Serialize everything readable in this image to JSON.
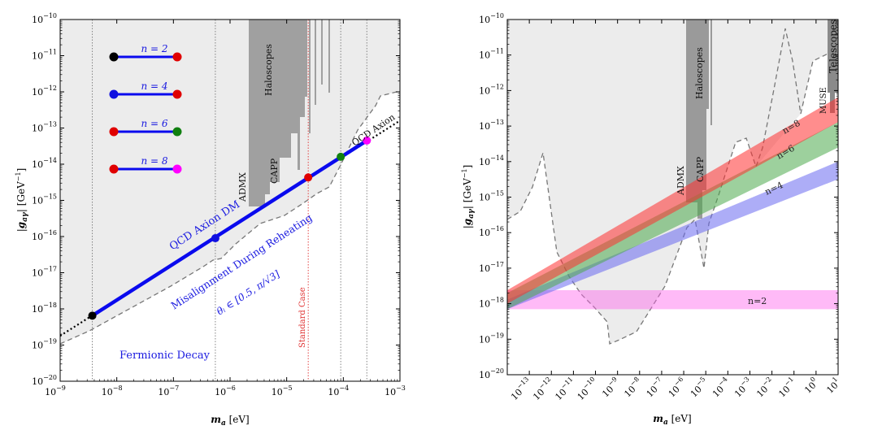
{
  "chart_data": [
    {
      "type": "line",
      "xscale": "log",
      "yscale": "log",
      "xlim": [
        1e-09,
        0.001
      ],
      "ylim": [
        1e-20,
        1e-10
      ],
      "xlabel": "m_a [eV]",
      "ylabel": "|g_aγ| [GeV⁻¹]",
      "x_ticks": [
        {
          "exp": -9,
          "label": "10",
          "sup": "−9"
        },
        {
          "exp": -8,
          "label": "10",
          "sup": "−8"
        },
        {
          "exp": -7,
          "label": "10",
          "sup": "−7"
        },
        {
          "exp": -6,
          "label": "10",
          "sup": "−6"
        },
        {
          "exp": -5,
          "label": "10",
          "sup": "−5"
        },
        {
          "exp": -4,
          "label": "10",
          "sup": "−4"
        },
        {
          "exp": -3,
          "label": "10",
          "sup": "−3"
        }
      ],
      "y_ticks": [
        {
          "exp": -20,
          "label": "10",
          "sup": "−20"
        },
        {
          "exp": -19,
          "label": "10",
          "sup": "−19"
        },
        {
          "exp": -18,
          "label": "10",
          "sup": "−18"
        },
        {
          "exp": -17,
          "label": "10",
          "sup": "−17"
        },
        {
          "exp": -16,
          "label": "10",
          "sup": "−16"
        },
        {
          "exp": -15,
          "label": "10",
          "sup": "−15"
        },
        {
          "exp": -14,
          "label": "10",
          "sup": "−14"
        },
        {
          "exp": -13,
          "label": "10",
          "sup": "−13"
        },
        {
          "exp": -12,
          "label": "10",
          "sup": "−12"
        },
        {
          "exp": -11,
          "label": "10",
          "sup": "−11"
        },
        {
          "exp": -10,
          "label": "10",
          "sup": "−10"
        }
      ],
      "qcd_axion_line": {
        "x": [
          1e-09,
          0.001
        ],
        "y": [
          1.8e-19,
          1.6e-13
        ]
      },
      "dm_segment": {
        "x": [
          3.7e-09,
          0.00026
        ],
        "y": [
          6.5e-19,
          4.5e-14
        ]
      },
      "points": [
        {
          "x": 3.7e-09,
          "y": 6.5e-19,
          "color": "#000000"
        },
        {
          "x": 5.5e-07,
          "y": 9e-17,
          "color": "#1010e0"
        },
        {
          "x": 2.4e-05,
          "y": 4.3e-15,
          "color": "#e00000"
        },
        {
          "x": 9e-05,
          "y": 1.6e-14,
          "color": "#108010"
        },
        {
          "x": 0.00026,
          "y": 4.5e-14,
          "color": "#ff00ff"
        }
      ],
      "vlines": [
        {
          "x": 3.7e-09,
          "color": "#777777"
        },
        {
          "x": 5.5e-07,
          "color": "#777777"
        },
        {
          "x": 2.4e-05,
          "color": "#e03030"
        },
        {
          "x": 9e-05,
          "color": "#777777"
        },
        {
          "x": 0.00026,
          "color": "#777777"
        }
      ],
      "legend_items": [
        {
          "label": "n = 2",
          "left_color": "#000000",
          "right_color": "#e00000"
        },
        {
          "label": "n = 4",
          "left_color": "#1010e0",
          "right_color": "#e00000"
        },
        {
          "label": "n = 6",
          "left_color": "#e00000",
          "right_color": "#108010"
        },
        {
          "label": "n = 8",
          "left_color": "#e00000",
          "right_color": "#ff00ff"
        }
      ],
      "annotations": {
        "haloscopes": "Haloscopes",
        "admx": "ADMX",
        "capp": "CAPP",
        "qcd_axion": "QCD Axion",
        "qcd_axion_dm": "QCD Axion DM",
        "misalignment": "Misalignment During Reheating",
        "theta": "θᵢ ∈ [0.5, π/√3]",
        "standard_case": "Standard Case",
        "fermionic_decay": "Fermionic Decay"
      },
      "colors": {
        "excluded": "#ececec",
        "haloscope": "#a0a0a0",
        "dm_line": "#0a0aee"
      }
    },
    {
      "type": "area",
      "xscale": "log",
      "yscale": "log",
      "xlim": [
        1e-14,
        10.0
      ],
      "ylim": [
        1e-20,
        1e-10
      ],
      "xlabel": "m_a [eV]",
      "ylabel": "|g_aγ| [GeV⁻¹]",
      "x_ticks": [
        {
          "exp": -13,
          "label": "10",
          "sup": "−13"
        },
        {
          "exp": -12,
          "label": "10",
          "sup": "−12"
        },
        {
          "exp": -11,
          "label": "10",
          "sup": "−11"
        },
        {
          "exp": -10,
          "label": "10",
          "sup": "−10"
        },
        {
          "exp": -9,
          "label": "10",
          "sup": "−9"
        },
        {
          "exp": -8,
          "label": "10",
          "sup": "−8"
        },
        {
          "exp": -7,
          "label": "10",
          "sup": "−7"
        },
        {
          "exp": -6,
          "label": "10",
          "sup": "−6"
        },
        {
          "exp": -5,
          "label": "10",
          "sup": "−5"
        },
        {
          "exp": -4,
          "label": "10",
          "sup": "−4"
        },
        {
          "exp": -3,
          "label": "10",
          "sup": "−3"
        },
        {
          "exp": -2,
          "label": "10",
          "sup": "−2"
        },
        {
          "exp": -1,
          "label": "10",
          "sup": "−1"
        },
        {
          "exp": 0,
          "label": "10",
          "sup": "0"
        },
        {
          "exp": 1,
          "label": "10",
          "sup": "1"
        }
      ],
      "y_ticks": [
        {
          "exp": -20,
          "label": "10",
          "sup": "−20"
        },
        {
          "exp": -19,
          "label": "10",
          "sup": "−19"
        },
        {
          "exp": -18,
          "label": "10",
          "sup": "−18"
        },
        {
          "exp": -17,
          "label": "10",
          "sup": "−17"
        },
        {
          "exp": -16,
          "label": "10",
          "sup": "−16"
        },
        {
          "exp": -15,
          "label": "10",
          "sup": "−15"
        },
        {
          "exp": -14,
          "label": "10",
          "sup": "−14"
        },
        {
          "exp": -13,
          "label": "10",
          "sup": "−13"
        },
        {
          "exp": -12,
          "label": "10",
          "sup": "−12"
        },
        {
          "exp": -11,
          "label": "10",
          "sup": "−11"
        },
        {
          "exp": -10,
          "label": "10",
          "sup": "−10"
        }
      ],
      "bands": [
        {
          "name": "n=2",
          "color": "#ff66ee",
          "x": [
            1e-14,
            10.0
          ],
          "lower": [
            7e-19,
            7e-19
          ],
          "upper": [
            2.4e-18,
            2.4e-18
          ]
        },
        {
          "name": "n=4",
          "color": "#6a6af0",
          "x": [
            1e-14,
            10.0
          ],
          "lower": [
            7e-19,
            3.2e-15
          ],
          "upper": [
            1.3e-18,
            1e-14
          ]
        },
        {
          "name": "n=6",
          "color": "#4caa4c",
          "x": [
            1e-14,
            10.0
          ],
          "lower": [
            7e-19,
            2.5e-14
          ],
          "upper": [
            2e-18,
            1.3e-13
          ]
        },
        {
          "name": "n=8",
          "color": "#ff3030",
          "x": [
            1e-14,
            10.0
          ],
          "lower": [
            1e-18,
            1.3e-13
          ],
          "upper": [
            2.4e-18,
            6.5e-13
          ]
        }
      ],
      "annotations": {
        "haloscopes": "Haloscopes",
        "admx": "ADMX",
        "capp": "CAPP",
        "muse": "MUSE",
        "telescopes": "Telescopes"
      },
      "colors": {
        "excluded": "#ececec",
        "haloscope": "#9a9a9a"
      }
    }
  ]
}
